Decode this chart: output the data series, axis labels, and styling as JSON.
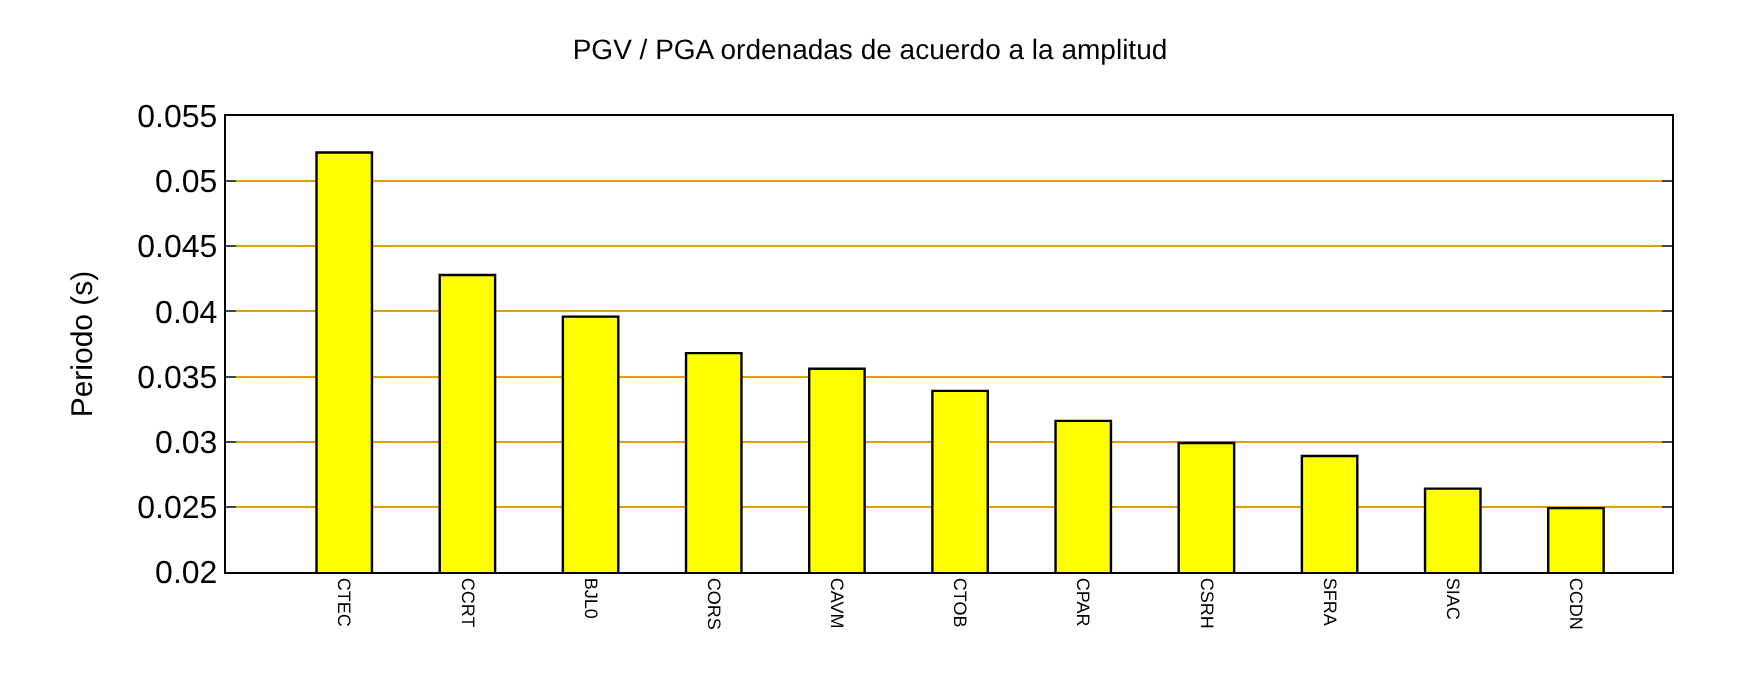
{
  "chart_data": {
    "type": "bar",
    "title": "PGV / PGA ordenadas de acuerdo a la amplitud",
    "ylabel": "Periodo (s)",
    "categories": [
      "CTEC",
      "CCRT",
      "BJL0",
      "CORS",
      "CAVM",
      "CTOB",
      "CPAR",
      "CSRH",
      "SFRA",
      "SIAC",
      "CCDN"
    ],
    "values": [
      0.0522,
      0.0428,
      0.0396,
      0.0368,
      0.0356,
      0.0339,
      0.0316,
      0.0299,
      0.0289,
      0.0264,
      0.0249
    ],
    "color": "#ffff00",
    "ylim": [
      0.02,
      0.055
    ],
    "yticks": [
      0.02,
      0.025,
      0.03,
      0.035,
      0.04,
      0.045,
      0.05,
      0.055
    ],
    "grid": "y"
  }
}
